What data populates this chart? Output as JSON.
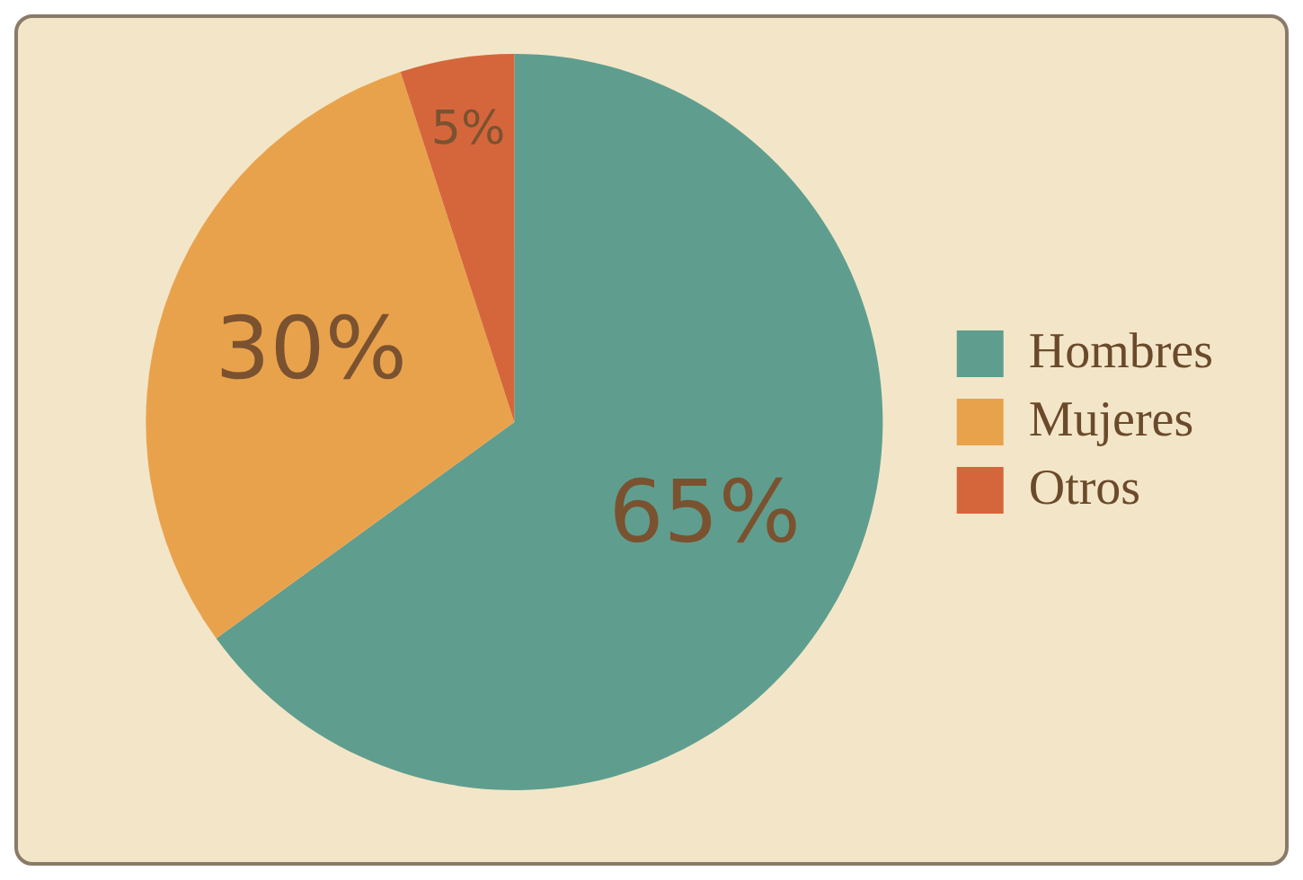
{
  "chart_data": {
    "type": "pie",
    "categories": [
      "Hombres",
      "Mujeres",
      "Otros"
    ],
    "values": [
      65,
      30,
      5
    ],
    "colors": [
      "#5f9e8e",
      "#e9a24c",
      "#d5663c"
    ],
    "value_labels": [
      "65%",
      "30%",
      "5%"
    ],
    "legend": "right"
  }
}
